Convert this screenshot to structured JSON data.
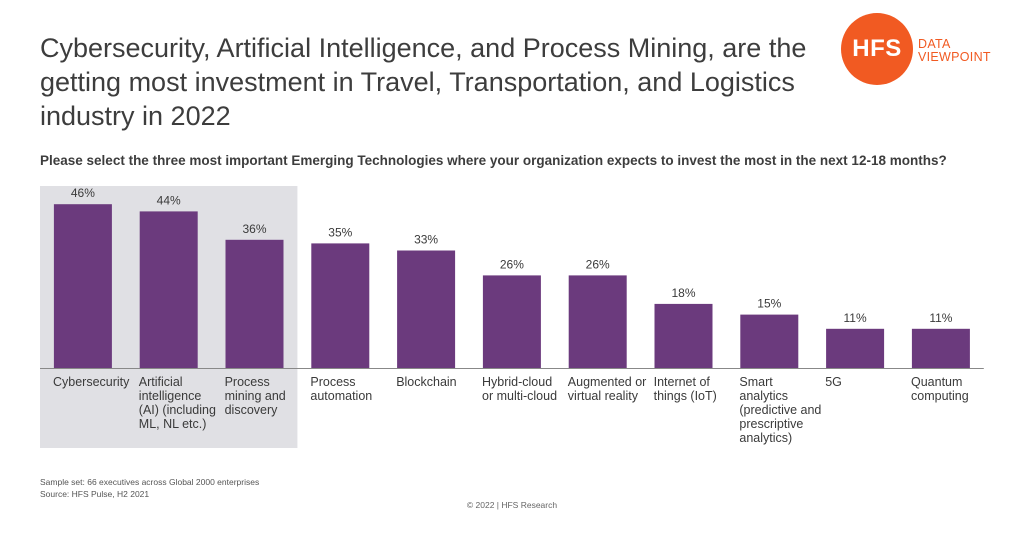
{
  "title": "Cybersecurity, Artificial Intelligence, and Process Mining, are the getting most investment in Travel, Transportation, and Logistics industry in 2022",
  "logo": {
    "mark": "HFS",
    "line1": "DATA",
    "line2": "VIEWPOINT"
  },
  "colors": {
    "bar": "#6b3a7d",
    "highlight": "#e0e0e4",
    "logo": "#f15a22",
    "axis": "#888888"
  },
  "chart_data": {
    "type": "bar",
    "title": "Please select the three most important Emerging Technologies where your organization expects to invest the most in the next 12-18 months?",
    "xlabel": "",
    "ylabel": "",
    "ylim": [
      0,
      50
    ],
    "categories": [
      "Cybersecurity",
      "Artificial intelligence (AI) (including ML, NL etc.)",
      "Process mining and discovery",
      "Process automation",
      "Blockchain",
      "Hybrid-cloud or multi-cloud",
      "Augmented or virtual reality",
      "Internet of things (IoT)",
      "Smart analytics (predictive and prescriptive analytics)",
      "5G",
      "Quantum computing"
    ],
    "values": [
      46,
      44,
      36,
      35,
      33,
      26,
      26,
      18,
      15,
      11,
      11
    ],
    "value_labels": [
      "46%",
      "44%",
      "36%",
      "35%",
      "33%",
      "26%",
      "26%",
      "18%",
      "15%",
      "11%",
      "11%"
    ],
    "highlighted": [
      "Cybersecurity",
      "Artificial intelligence (AI) (including ML, NL etc.)",
      "Process mining and discovery"
    ]
  },
  "footnotes": {
    "sample": "Sample set: 66 executives across Global 2000 enterprises",
    "source": "Source: HFS Pulse, H2 2021"
  },
  "copyright": "© 2022 | HFS Research"
}
